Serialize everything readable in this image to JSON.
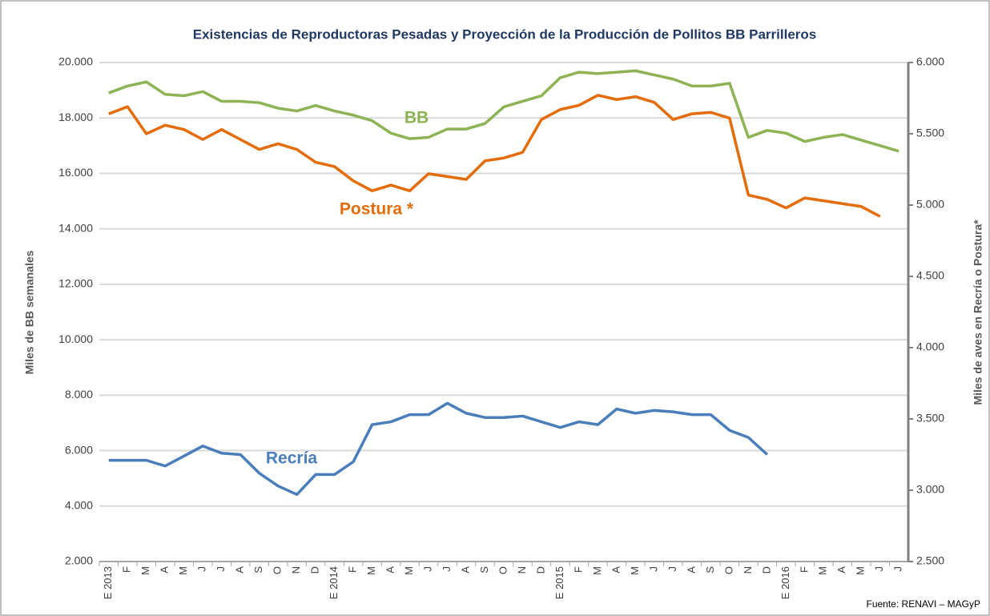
{
  "chart_data": {
    "type": "line",
    "title": "Existencias de Reproductoras Pesadas y Proyección de la Producción de Pollitos BB Parrilleros",
    "y_label": "Miles de BB semanales",
    "y2_label": "Miles de aves en Recría o Postura*",
    "source": "Fuente:  RENAVI – MAGyP",
    "categories": [
      "E 2013",
      "F",
      "M",
      "A",
      "M",
      "J",
      "J",
      "A",
      "S",
      "O",
      "N",
      "D",
      "E 2014",
      "F",
      "M",
      "A",
      "M",
      "J",
      "J",
      "A",
      "S",
      "O",
      "N",
      "D",
      "E 2015",
      "F",
      "M",
      "A",
      "M",
      "J",
      "J",
      "A",
      "S",
      "O",
      "N",
      "D",
      "E 2016",
      "F",
      "M",
      "A",
      "M",
      "J",
      "J"
    ],
    "ylim": [
      2000,
      20000
    ],
    "yticks": [
      {
        "value": 2000,
        "label": "2.000"
      },
      {
        "value": 4000,
        "label": "4.000"
      },
      {
        "value": 6000,
        "label": "6.000"
      },
      {
        "value": 8000,
        "label": "8.000"
      },
      {
        "value": 10000,
        "label": "10.000"
      },
      {
        "value": 12000,
        "label": "12.000"
      },
      {
        "value": 14000,
        "label": "14.000"
      },
      {
        "value": 16000,
        "label": "16.000"
      },
      {
        "value": 18000,
        "label": "18.000"
      },
      {
        "value": 20000,
        "label": "20.000"
      }
    ],
    "y2lim": [
      2500,
      6000
    ],
    "y2ticks": [
      {
        "value": 2500,
        "label": "2.500"
      },
      {
        "value": 3000,
        "label": "3.000"
      },
      {
        "value": 3500,
        "label": "3.500"
      },
      {
        "value": 4000,
        "label": "4.000"
      },
      {
        "value": 4500,
        "label": "4.500"
      },
      {
        "value": 5000,
        "label": "5.000"
      },
      {
        "value": 5500,
        "label": "5.500"
      },
      {
        "value": 6000,
        "label": "6.000"
      }
    ],
    "grid": true,
    "series": [
      {
        "name": "BB",
        "color": "#8db354",
        "values": [
          18900,
          19150,
          19300,
          18850,
          18800,
          18950,
          18600,
          18600,
          18550,
          18350,
          18250,
          18450,
          18250,
          18100,
          17900,
          17450,
          17250,
          17300,
          17600,
          17600,
          17800,
          18400,
          18600,
          18800,
          19450,
          19650,
          19600,
          19650,
          19700,
          19550,
          19400,
          19150,
          19150,
          19250,
          17300,
          17550,
          17450,
          17150,
          17300,
          17400,
          17200,
          17000,
          16800
        ]
      },
      {
        "name": "Postura *",
        "color": "#e46c0a",
        "axis": "y2",
        "values": [
          5640,
          5690,
          5500,
          5560,
          5530,
          5460,
          5530,
          5460,
          5390,
          5430,
          5390,
          5300,
          5270,
          5170,
          5100,
          5140,
          5100,
          5220,
          5200,
          5180,
          5310,
          5330,
          5370,
          5600,
          5670,
          5700,
          5770,
          5740,
          5760,
          5720,
          5600,
          5640,
          5650,
          5610,
          5070,
          5040,
          4980,
          5050,
          5030,
          5010,
          4990,
          4920,
          null
        ]
      },
      {
        "name": "Recría",
        "color": "#4a7ebb",
        "axis": "y2",
        "values": [
          3210,
          3210,
          3210,
          3170,
          3240,
          3310,
          3260,
          3250,
          3120,
          3030,
          2970,
          3110,
          3110,
          3200,
          3460,
          3480,
          3530,
          3530,
          3610,
          3540,
          3510,
          3510,
          3520,
          3480,
          3440,
          3480,
          3460,
          3570,
          3540,
          3560,
          3550,
          3530,
          3530,
          3420,
          3370,
          3250,
          null,
          null,
          null,
          null,
          null,
          null,
          null
        ]
      }
    ]
  }
}
